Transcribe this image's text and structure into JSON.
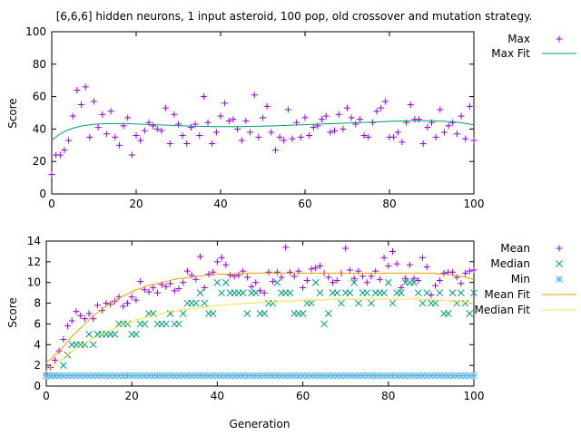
{
  "title": "[6,6,6] hidden neurons, 1 input asteroid, 100 pop, old crossover and mutation strategy.",
  "colors": {
    "max": "#9400d3",
    "maxfit": "#009e73",
    "mean": "#9400d3",
    "median": "#009e73",
    "min": "#56b4e9",
    "meanfit": "#e69f00",
    "medianfit": "#f0e442"
  },
  "chart_data": [
    {
      "type": "scatter",
      "title": "[6,6,6] hidden neurons, 1 input asteroid, 100 pop, old crossover and mutation strategy.",
      "xlabel": "",
      "ylabel": "Score",
      "xlim": [
        0,
        100
      ],
      "ylim": [
        0,
        100
      ],
      "xticks": [
        "0",
        "20",
        "40",
        "60",
        "80",
        "100"
      ],
      "yticks": [
        "0",
        "20",
        "40",
        "60",
        "80",
        "100"
      ],
      "legend_position": "top-right outside",
      "series": [
        {
          "name": "Max",
          "marker": "plus",
          "values": [
            12,
            24,
            24,
            27,
            33,
            48,
            64,
            55,
            66,
            35,
            57,
            41,
            49,
            37,
            51,
            35,
            30,
            42,
            47,
            24,
            36,
            33,
            39,
            44,
            42,
            40,
            39,
            53,
            31,
            49,
            43,
            36,
            31,
            41,
            43,
            36,
            60,
            44,
            31,
            38,
            48,
            56,
            45,
            46,
            40,
            33,
            45,
            38,
            61,
            35,
            47,
            54,
            38,
            27,
            35,
            33,
            52,
            34,
            44,
            35,
            47,
            36,
            41,
            42,
            46,
            48,
            38,
            39,
            49,
            40,
            53,
            47,
            43,
            46,
            36,
            35,
            44,
            51,
            53,
            57,
            35,
            35,
            38,
            32,
            44,
            55,
            46,
            46,
            31,
            41,
            44,
            35,
            52,
            38,
            42,
            44,
            37,
            48,
            34,
            54,
            33
          ]
        },
        {
          "name": "Max Fit",
          "line": true,
          "values": [
            33,
            35.2,
            37,
            38.5,
            39.6,
            40.5,
            41.2,
            41.8,
            42.2,
            42.6,
            42.9,
            43.1,
            43.2,
            43.3,
            43.4,
            43.4,
            43.4,
            43.4,
            43.3,
            43.2,
            43.1,
            43,
            42.9,
            42.8,
            42.7,
            42.6,
            42.5,
            42.4,
            42.3,
            42.2,
            42.1,
            42,
            41.9,
            41.8,
            41.7,
            41.7,
            41.6,
            41.6,
            41.5,
            41.5,
            41.5,
            41.5,
            41.5,
            41.5,
            41.5,
            41.5,
            41.6,
            41.6,
            41.7,
            41.7,
            41.8,
            41.9,
            41.9,
            42,
            42.1,
            42.2,
            42.3,
            42.4,
            42.5,
            42.6,
            42.7,
            42.8,
            42.9,
            43,
            43.1,
            43.2,
            43.3,
            43.4,
            43.5,
            43.6,
            43.7,
            43.8,
            43.9,
            44,
            44.1,
            44.2,
            44.3,
            44.4,
            44.5,
            44.6,
            44.7,
            44.8,
            44.9,
            45,
            45,
            45.1,
            45.1,
            45.1,
            45.1,
            45.1,
            45.1,
            45,
            44.9,
            44.8,
            44.6,
            44.4,
            44.2,
            43.9,
            43.5,
            43,
            42.5
          ]
        }
      ]
    },
    {
      "type": "scatter",
      "xlabel": "Generation",
      "ylabel": "Score",
      "xlim": [
        0,
        100
      ],
      "ylim": [
        0,
        14
      ],
      "xticks": [
        "0",
        "20",
        "40",
        "60",
        "80",
        "100"
      ],
      "yticks": [
        "0",
        "2",
        "4",
        "6",
        "8",
        "10",
        "12",
        "14"
      ],
      "legend_position": "top-right outside",
      "series": [
        {
          "name": "Mean",
          "marker": "plus",
          "values": [
            1.2,
            1.8,
            2.5,
            3.4,
            4.5,
            5.8,
            6.3,
            7.2,
            6.8,
            6.5,
            7.0,
            6.5,
            7.8,
            7.3,
            8.0,
            7.9,
            8.2,
            8.6,
            7.7,
            8.0,
            8.6,
            8.3,
            10.1,
            9.3,
            9.1,
            9.5,
            9.0,
            9.8,
            9.6,
            9.9,
            9.2,
            9.4,
            10.0,
            11.1,
            10.7,
            10.3,
            12.5,
            9.5,
            10.8,
            11.0,
            12.0,
            12.4,
            11.7,
            10.7,
            10.6,
            10.7,
            11.1,
            10.5,
            9.6,
            10.0,
            9.2,
            9.0,
            11.0,
            10.1,
            11.0,
            10.5,
            13.4,
            11.0,
            10.6,
            11.1,
            9.5,
            10.2,
            11.3,
            11.4,
            11.6,
            10.9,
            10.5,
            10.0,
            10.2,
            10.9,
            13.3,
            11.2,
            10.4,
            11.1,
            10.6,
            10.0,
            10.6,
            11.1,
            10.3,
            12.4,
            11.6,
            13.0,
            11.8,
            9.5,
            10.4,
            11.7,
            10.4,
            10.2,
            12.4,
            11.5,
            8.8,
            9.7,
            10.2,
            10.9,
            11.0,
            11.0,
            10.5,
            9.9,
            10.9,
            11.1,
            11.2
          ]
        },
        {
          "name": "Median",
          "marker": "x",
          "values": [
            1,
            1,
            1,
            1,
            2,
            3,
            4,
            4,
            4,
            4,
            5,
            4,
            5,
            5,
            5,
            5,
            5,
            6,
            6,
            6,
            5,
            5,
            6,
            6,
            7,
            7,
            6,
            6,
            6,
            7,
            6,
            6,
            7,
            8,
            8,
            8,
            9,
            8,
            7,
            7,
            10,
            9,
            10,
            9,
            9,
            9,
            9,
            7,
            9,
            9,
            7,
            7,
            8,
            8,
            10,
            9,
            9,
            9,
            7,
            7,
            7,
            8,
            8,
            10,
            9,
            6,
            7,
            9,
            9,
            8,
            9,
            9,
            10,
            8,
            9,
            9,
            8,
            9,
            9,
            9,
            10,
            8,
            9,
            9,
            10,
            10,
            10,
            9,
            8,
            9,
            8,
            8,
            9,
            7,
            7,
            9,
            8,
            9,
            8,
            7,
            9
          ]
        },
        {
          "name": "Min",
          "marker": "star",
          "values": [
            1,
            1,
            1,
            1,
            1,
            1,
            1,
            1,
            1,
            1,
            1,
            1,
            1,
            1,
            1,
            1,
            1,
            1,
            1,
            1,
            1,
            1,
            1,
            1,
            1,
            1,
            1,
            1,
            1,
            1,
            1,
            1,
            1,
            1,
            1,
            1,
            1,
            1,
            1,
            1,
            1,
            1,
            1,
            1,
            1,
            1,
            1,
            1,
            1,
            1,
            1,
            1,
            1,
            1,
            1,
            1,
            1,
            1,
            1,
            1,
            1,
            1,
            1,
            1,
            1,
            1,
            1,
            1,
            1,
            1,
            1,
            1,
            1,
            1,
            1,
            1,
            1,
            1,
            1,
            1,
            1,
            1,
            1,
            1,
            1,
            1,
            1,
            1,
            1,
            1,
            1,
            1,
            1,
            1,
            1,
            1,
            1,
            1,
            1,
            1,
            1
          ]
        },
        {
          "name": "Mean Fit",
          "line": true,
          "values": [
            2.3,
            2.6,
            3.0,
            3.4,
            3.8,
            4.3,
            4.8,
            5.2,
            5.6,
            6.0,
            6.4,
            6.8,
            7.1,
            7.4,
            7.7,
            8.0,
            8.2,
            8.5,
            8.7,
            8.9,
            9.1,
            9.3,
            9.4,
            9.6,
            9.7,
            9.8,
            9.9,
            10.0,
            10.1,
            10.2,
            10.3,
            10.4,
            10.4,
            10.5,
            10.5,
            10.6,
            10.6,
            10.7,
            10.7,
            10.7,
            10.8,
            10.8,
            10.8,
            10.8,
            10.8,
            10.9,
            10.9,
            10.9,
            10.9,
            10.9,
            10.9,
            10.9,
            10.9,
            10.9,
            10.9,
            10.9,
            10.9,
            10.9,
            10.9,
            10.9,
            10.9,
            10.9,
            10.9,
            10.9,
            10.9,
            10.9,
            10.9,
            10.9,
            10.9,
            10.9,
            10.9,
            10.9,
            10.9,
            10.9,
            10.9,
            10.9,
            10.9,
            10.9,
            10.9,
            10.9,
            10.9,
            10.9,
            10.9,
            10.9,
            10.9,
            10.9,
            10.9,
            10.9,
            10.9,
            10.9,
            10.9,
            10.9,
            10.8,
            10.8,
            10.8,
            10.7,
            10.7,
            10.6,
            10.5,
            10.4,
            10.3
          ]
        },
        {
          "name": "Median Fit",
          "line": true,
          "values": [
            1.5,
            1.8,
            2.1,
            2.4,
            2.7,
            3.0,
            3.3,
            3.6,
            3.9,
            4.1,
            4.4,
            4.6,
            4.8,
            5.0,
            5.2,
            5.4,
            5.6,
            5.8,
            5.9,
            6.1,
            6.2,
            6.4,
            6.5,
            6.6,
            6.7,
            6.8,
            6.9,
            7.0,
            7.1,
            7.2,
            7.2,
            7.3,
            7.4,
            7.4,
            7.5,
            7.5,
            7.6,
            7.6,
            7.7,
            7.7,
            7.8,
            7.8,
            7.8,
            7.9,
            7.9,
            7.9,
            8.0,
            8.0,
            8.0,
            8.0,
            8.1,
            8.1,
            8.1,
            8.1,
            8.2,
            8.2,
            8.2,
            8.2,
            8.2,
            8.3,
            8.3,
            8.3,
            8.3,
            8.3,
            8.3,
            8.3,
            8.4,
            8.4,
            8.4,
            8.4,
            8.4,
            8.4,
            8.4,
            8.4,
            8.4,
            8.4,
            8.4,
            8.4,
            8.4,
            8.4,
            8.4,
            8.4,
            8.4,
            8.4,
            8.4,
            8.4,
            8.4,
            8.4,
            8.4,
            8.4,
            8.3,
            8.3,
            8.3,
            8.3,
            8.2,
            8.2,
            8.2,
            8.1,
            8.1,
            8.0,
            8.0
          ]
        }
      ]
    }
  ]
}
